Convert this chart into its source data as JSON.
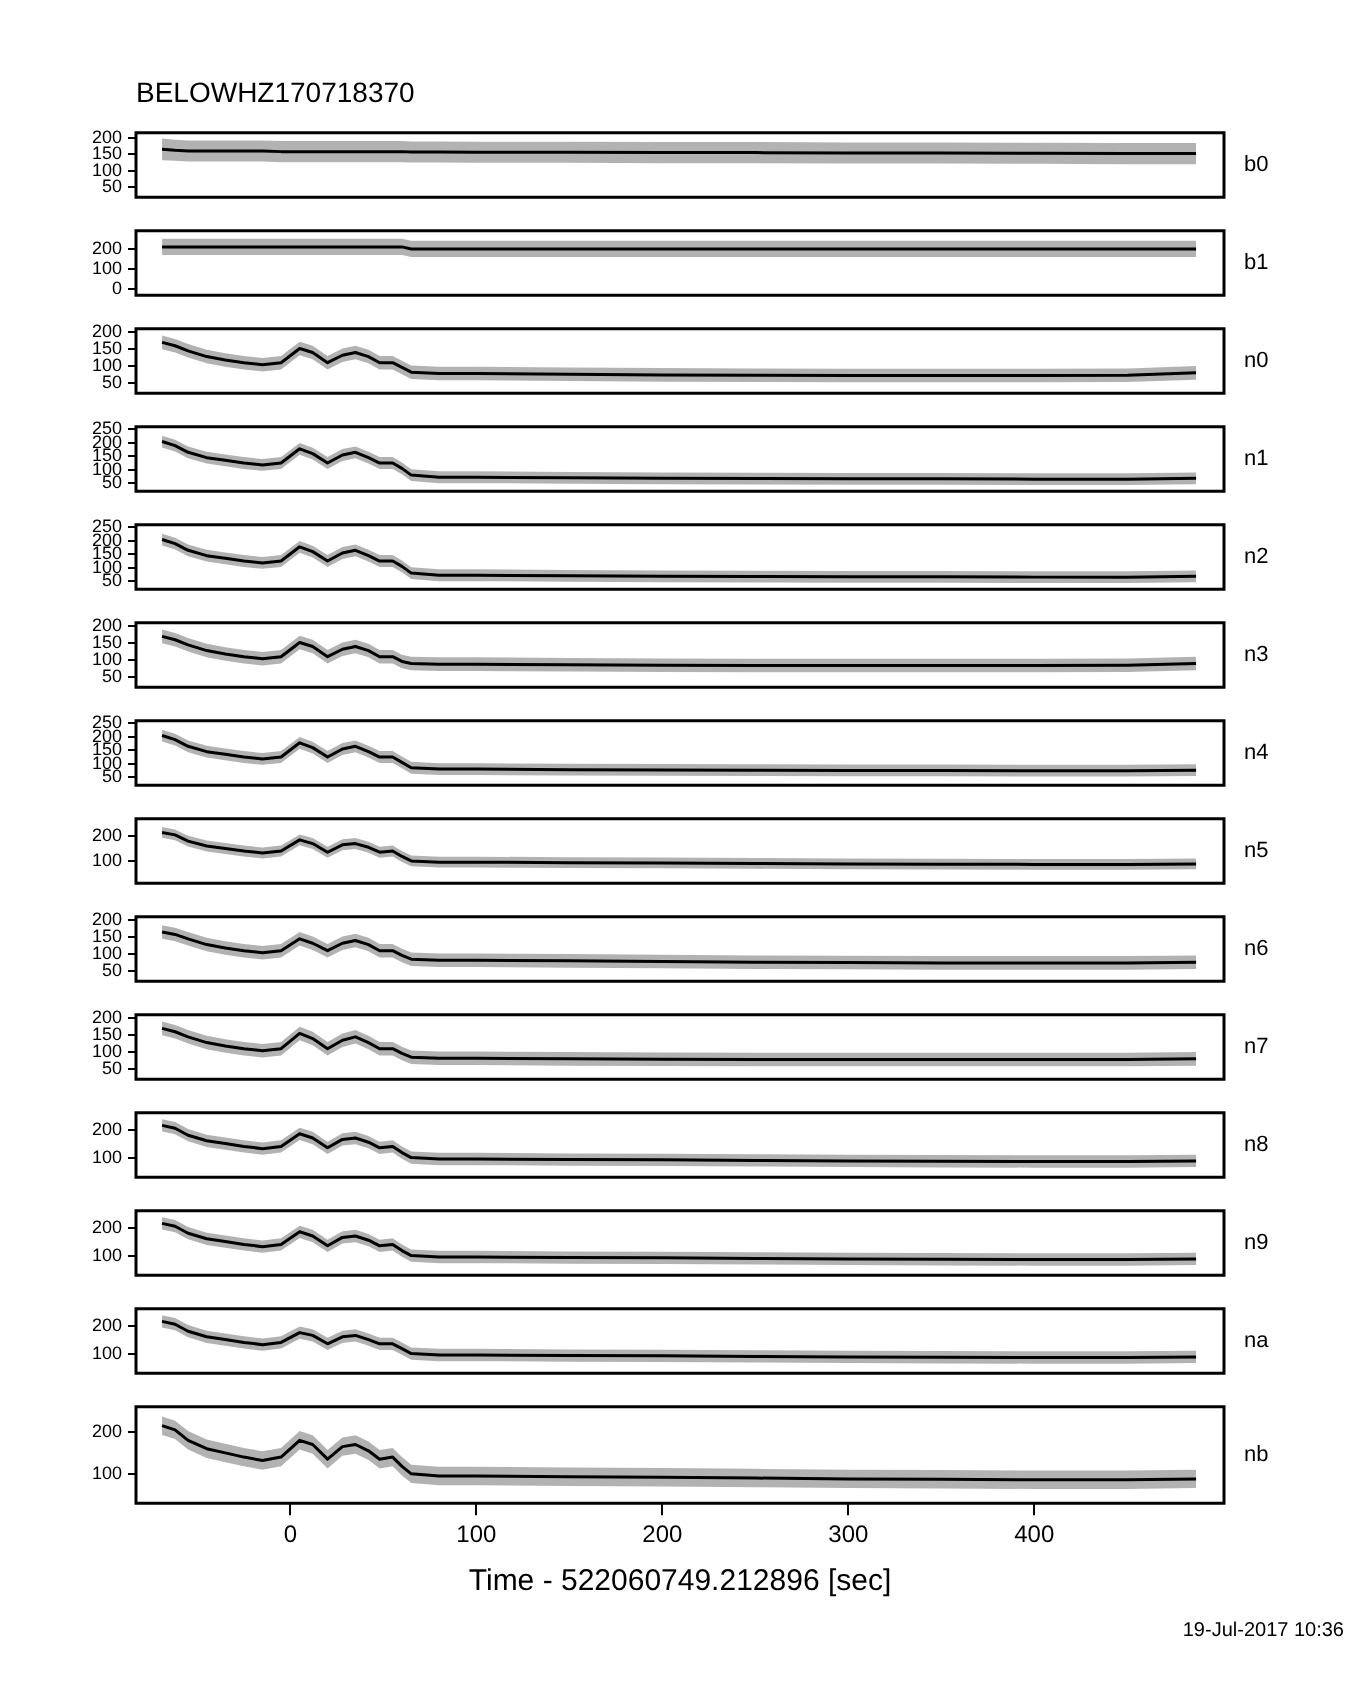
{
  "chart_data": [
    {
      "type": "line",
      "title": "BELOWHZ170718370",
      "x": [
        -69,
        -62,
        -55,
        -45,
        -35,
        -25,
        -15,
        -5,
        5,
        12,
        20,
        28,
        35,
        42,
        48,
        55,
        60,
        65,
        80,
        100,
        150,
        200,
        250,
        300,
        350,
        400,
        450,
        487
      ],
      "xlim": [
        -83,
        502
      ],
      "ylim": [
        20,
        215
      ],
      "yticks": [
        50,
        100,
        150,
        200
      ],
      "tick_labels": "y",
      "series": [
        {
          "name": "b0",
          "color": "#000000",
          "values": [
            165,
            162,
            160,
            160,
            160,
            160,
            160,
            158,
            158,
            158,
            158,
            158,
            158,
            158,
            158,
            158,
            158,
            157,
            157,
            156,
            156,
            155,
            155,
            154,
            154,
            153,
            152,
            152
          ],
          "lower": [
            132,
            130,
            128,
            128,
            128,
            128,
            128,
            126,
            126,
            126,
            126,
            126,
            126,
            126,
            126,
            126,
            126,
            125,
            125,
            124,
            124,
            123,
            123,
            122,
            122,
            121,
            120,
            120
          ],
          "upper": [
            198,
            194,
            192,
            192,
            192,
            192,
            192,
            190,
            190,
            190,
            190,
            190,
            190,
            190,
            190,
            190,
            190,
            189,
            189,
            188,
            188,
            187,
            187,
            186,
            186,
            185,
            184,
            184
          ]
        }
      ]
    },
    {
      "type": "line",
      "x": [
        -69,
        -62,
        -55,
        -45,
        -35,
        -25,
        -15,
        -5,
        5,
        12,
        20,
        28,
        35,
        42,
        48,
        55,
        60,
        65,
        80,
        100,
        150,
        200,
        250,
        300,
        350,
        400,
        450,
        487
      ],
      "xlim": [
        -83,
        502
      ],
      "ylim": [
        -30,
        290
      ],
      "yticks": [
        0,
        100,
        200
      ],
      "tick_labels": "y",
      "series": [
        {
          "name": "b1",
          "color": "#000000",
          "values": [
            210,
            210,
            210,
            210,
            210,
            210,
            210,
            210,
            210,
            210,
            210,
            210,
            210,
            210,
            210,
            210,
            210,
            200,
            200,
            200,
            200,
            200,
            200,
            200,
            200,
            200,
            200,
            200
          ],
          "lower": [
            170,
            170,
            170,
            170,
            170,
            170,
            170,
            170,
            170,
            170,
            170,
            170,
            170,
            170,
            170,
            170,
            170,
            160,
            160,
            160,
            160,
            160,
            160,
            160,
            160,
            160,
            160,
            160
          ],
          "upper": [
            250,
            250,
            250,
            250,
            250,
            250,
            250,
            250,
            250,
            250,
            250,
            250,
            250,
            250,
            250,
            250,
            250,
            240,
            240,
            240,
            240,
            240,
            240,
            240,
            240,
            240,
            240,
            240
          ]
        }
      ]
    },
    {
      "type": "line",
      "x": [
        -69,
        -62,
        -55,
        -45,
        -35,
        -25,
        -15,
        -5,
        5,
        12,
        20,
        28,
        35,
        42,
        48,
        55,
        60,
        65,
        80,
        100,
        150,
        200,
        250,
        300,
        350,
        400,
        450,
        487
      ],
      "xlim": [
        -83,
        502
      ],
      "ylim": [
        20,
        210
      ],
      "yticks": [
        50,
        100,
        150,
        200
      ],
      "tick_labels": "y",
      "series": [
        {
          "name": "n0",
          "color": "#000000",
          "values": [
            170,
            160,
            145,
            128,
            118,
            110,
            104,
            110,
            152,
            140,
            110,
            132,
            140,
            128,
            110,
            110,
            96,
            82,
            78,
            78,
            76,
            74,
            73,
            72,
            72,
            72,
            73,
            80
          ],
          "lower": [
            150,
            140,
            125,
            108,
            98,
            90,
            84,
            90,
            132,
            120,
            90,
            112,
            120,
            108,
            90,
            90,
            76,
            62,
            58,
            58,
            56,
            54,
            53,
            52,
            52,
            52,
            53,
            60
          ],
          "upper": [
            190,
            180,
            165,
            148,
            138,
            130,
            124,
            130,
            172,
            160,
            130,
            152,
            160,
            148,
            130,
            130,
            116,
            102,
            98,
            98,
            96,
            94,
            93,
            92,
            92,
            92,
            93,
            100
          ]
        }
      ]
    },
    {
      "type": "line",
      "x": [
        -69,
        -62,
        -55,
        -45,
        -35,
        -25,
        -15,
        -5,
        5,
        12,
        20,
        28,
        35,
        42,
        48,
        55,
        60,
        65,
        80,
        100,
        150,
        200,
        250,
        300,
        350,
        400,
        450,
        487
      ],
      "xlim": [
        -83,
        502
      ],
      "ylim": [
        20,
        260
      ],
      "yticks": [
        50,
        100,
        150,
        200,
        250
      ],
      "tick_labels": "y",
      "series": [
        {
          "name": "n1",
          "color": "#000000",
          "values": [
            205,
            190,
            165,
            145,
            135,
            125,
            118,
            125,
            178,
            160,
            125,
            155,
            165,
            145,
            125,
            125,
            105,
            80,
            72,
            72,
            70,
            68,
            67,
            66,
            66,
            65,
            65,
            68
          ],
          "lower": [
            183,
            168,
            143,
            123,
            113,
            103,
            96,
            103,
            156,
            138,
            103,
            133,
            143,
            123,
            103,
            103,
            83,
            58,
            50,
            50,
            48,
            46,
            45,
            44,
            44,
            43,
            43,
            46
          ],
          "upper": [
            227,
            212,
            187,
            167,
            157,
            147,
            140,
            147,
            200,
            182,
            147,
            177,
            187,
            167,
            147,
            147,
            127,
            102,
            94,
            94,
            92,
            90,
            89,
            88,
            88,
            87,
            87,
            90
          ]
        }
      ]
    },
    {
      "type": "line",
      "x": [
        -69,
        -62,
        -55,
        -45,
        -35,
        -25,
        -15,
        -5,
        5,
        12,
        20,
        28,
        35,
        42,
        48,
        55,
        60,
        65,
        80,
        100,
        150,
        200,
        250,
        300,
        350,
        400,
        450,
        487
      ],
      "xlim": [
        -83,
        502
      ],
      "ylim": [
        20,
        260
      ],
      "yticks": [
        50,
        100,
        150,
        200,
        250
      ],
      "tick_labels": "y",
      "series": [
        {
          "name": "n2",
          "color": "#000000",
          "values": [
            205,
            190,
            165,
            145,
            135,
            125,
            118,
            125,
            178,
            160,
            125,
            155,
            165,
            145,
            125,
            125,
            105,
            80,
            72,
            72,
            70,
            68,
            67,
            66,
            66,
            65,
            65,
            68
          ],
          "lower": [
            183,
            168,
            143,
            123,
            113,
            103,
            96,
            103,
            156,
            138,
            103,
            133,
            143,
            123,
            103,
            103,
            83,
            58,
            50,
            50,
            48,
            46,
            45,
            44,
            44,
            43,
            43,
            46
          ],
          "upper": [
            227,
            212,
            187,
            167,
            157,
            147,
            140,
            147,
            200,
            182,
            147,
            177,
            187,
            167,
            147,
            147,
            127,
            102,
            94,
            94,
            92,
            90,
            89,
            88,
            88,
            87,
            87,
            90
          ]
        }
      ]
    },
    {
      "type": "line",
      "x": [
        -69,
        -62,
        -55,
        -45,
        -35,
        -25,
        -15,
        -5,
        5,
        12,
        20,
        28,
        35,
        42,
        48,
        55,
        60,
        65,
        80,
        100,
        150,
        200,
        250,
        300,
        350,
        400,
        450,
        487
      ],
      "xlim": [
        -83,
        502
      ],
      "ylim": [
        20,
        210
      ],
      "yticks": [
        50,
        100,
        150,
        200
      ],
      "tick_labels": "y",
      "series": [
        {
          "name": "n3",
          "color": "#000000",
          "values": [
            170,
            160,
            145,
            128,
            118,
            110,
            104,
            110,
            152,
            140,
            110,
            132,
            140,
            128,
            110,
            110,
            96,
            90,
            88,
            88,
            86,
            85,
            84,
            84,
            84,
            84,
            85,
            90
          ],
          "lower": [
            150,
            140,
            125,
            108,
            98,
            90,
            84,
            90,
            132,
            120,
            90,
            112,
            120,
            108,
            90,
            90,
            76,
            70,
            68,
            68,
            66,
            65,
            64,
            64,
            64,
            64,
            65,
            70
          ],
          "upper": [
            190,
            180,
            165,
            148,
            138,
            130,
            124,
            130,
            172,
            160,
            130,
            152,
            160,
            148,
            130,
            130,
            116,
            110,
            108,
            108,
            106,
            105,
            104,
            104,
            104,
            104,
            105,
            110
          ]
        }
      ]
    },
    {
      "type": "line",
      "x": [
        -69,
        -62,
        -55,
        -45,
        -35,
        -25,
        -15,
        -5,
        5,
        12,
        20,
        28,
        35,
        42,
        48,
        55,
        60,
        65,
        80,
        100,
        150,
        200,
        250,
        300,
        350,
        400,
        450,
        487
      ],
      "xlim": [
        -83,
        502
      ],
      "ylim": [
        20,
        260
      ],
      "yticks": [
        50,
        100,
        150,
        200,
        250
      ],
      "tick_labels": "y",
      "series": [
        {
          "name": "n4",
          "color": "#000000",
          "values": [
            205,
            190,
            165,
            145,
            135,
            125,
            118,
            125,
            178,
            160,
            125,
            155,
            165,
            145,
            125,
            125,
            105,
            85,
            80,
            80,
            78,
            77,
            76,
            75,
            75,
            74,
            74,
            76
          ],
          "lower": [
            183,
            168,
            143,
            123,
            113,
            103,
            96,
            103,
            156,
            138,
            103,
            133,
            143,
            123,
            103,
            103,
            83,
            63,
            58,
            58,
            56,
            55,
            54,
            53,
            53,
            52,
            52,
            54
          ],
          "upper": [
            227,
            212,
            187,
            167,
            157,
            147,
            140,
            147,
            200,
            182,
            147,
            177,
            187,
            167,
            147,
            147,
            127,
            107,
            102,
            102,
            100,
            99,
            98,
            97,
            97,
            96,
            96,
            98
          ]
        }
      ]
    },
    {
      "type": "line",
      "x": [
        -69,
        -62,
        -55,
        -45,
        -35,
        -25,
        -15,
        -5,
        5,
        12,
        20,
        28,
        35,
        42,
        48,
        55,
        60,
        65,
        80,
        100,
        150,
        200,
        250,
        300,
        350,
        400,
        450,
        487
      ],
      "xlim": [
        -83,
        502
      ],
      "ylim": [
        10,
        270
      ],
      "yticks": [
        100,
        200
      ],
      "tick_labels": "y",
      "series": [
        {
          "name": "n5",
          "color": "#000000",
          "values": [
            215,
            205,
            180,
            160,
            150,
            140,
            132,
            140,
            185,
            170,
            135,
            165,
            170,
            155,
            135,
            140,
            118,
            100,
            95,
            95,
            93,
            92,
            90,
            88,
            87,
            86,
            86,
            88
          ],
          "lower": [
            193,
            183,
            158,
            138,
            128,
            118,
            110,
            118,
            163,
            148,
            113,
            143,
            148,
            133,
            113,
            118,
            96,
            78,
            73,
            73,
            71,
            70,
            68,
            66,
            65,
            64,
            64,
            66
          ],
          "upper": [
            237,
            227,
            202,
            182,
            172,
            162,
            154,
            162,
            207,
            192,
            157,
            187,
            192,
            177,
            157,
            162,
            140,
            122,
            117,
            117,
            115,
            114,
            112,
            110,
            109,
            108,
            108,
            110
          ]
        }
      ]
    },
    {
      "type": "line",
      "x": [
        -69,
        -62,
        -55,
        -45,
        -35,
        -25,
        -15,
        -5,
        5,
        12,
        20,
        28,
        35,
        42,
        48,
        55,
        60,
        65,
        80,
        100,
        150,
        200,
        250,
        300,
        350,
        400,
        450,
        487
      ],
      "xlim": [
        -83,
        502
      ],
      "ylim": [
        20,
        210
      ],
      "yticks": [
        50,
        100,
        150,
        200
      ],
      "tick_labels": "y",
      "series": [
        {
          "name": "n6",
          "color": "#000000",
          "values": [
            165,
            158,
            145,
            128,
            118,
            110,
            104,
            110,
            145,
            132,
            110,
            132,
            140,
            128,
            110,
            110,
            96,
            85,
            82,
            82,
            80,
            78,
            76,
            75,
            74,
            74,
            74,
            76
          ],
          "lower": [
            145,
            138,
            125,
            108,
            98,
            90,
            84,
            90,
            125,
            112,
            90,
            112,
            120,
            108,
            90,
            90,
            76,
            65,
            62,
            62,
            60,
            58,
            56,
            55,
            54,
            54,
            54,
            56
          ],
          "upper": [
            185,
            178,
            165,
            148,
            138,
            130,
            124,
            130,
            165,
            152,
            130,
            152,
            160,
            148,
            130,
            130,
            116,
            105,
            102,
            102,
            100,
            98,
            96,
            95,
            94,
            94,
            94,
            96
          ]
        }
      ]
    },
    {
      "type": "line",
      "x": [
        -69,
        -62,
        -55,
        -45,
        -35,
        -25,
        -15,
        -5,
        5,
        12,
        20,
        28,
        35,
        42,
        48,
        55,
        60,
        65,
        80,
        100,
        150,
        200,
        250,
        300,
        350,
        400,
        450,
        487
      ],
      "xlim": [
        -83,
        502
      ],
      "ylim": [
        20,
        210
      ],
      "yticks": [
        50,
        100,
        150,
        200
      ],
      "tick_labels": "y",
      "series": [
        {
          "name": "n7",
          "color": "#000000",
          "values": [
            170,
            160,
            145,
            128,
            118,
            110,
            104,
            110,
            155,
            140,
            110,
            135,
            145,
            128,
            110,
            110,
            96,
            85,
            82,
            82,
            80,
            79,
            78,
            78,
            78,
            78,
            78,
            80
          ],
          "lower": [
            150,
            140,
            125,
            108,
            98,
            90,
            84,
            90,
            135,
            120,
            90,
            115,
            125,
            108,
            90,
            90,
            76,
            65,
            62,
            62,
            60,
            59,
            58,
            58,
            58,
            58,
            58,
            60
          ],
          "upper": [
            190,
            180,
            165,
            148,
            138,
            130,
            124,
            130,
            175,
            160,
            130,
            155,
            165,
            148,
            130,
            130,
            116,
            105,
            102,
            102,
            100,
            99,
            98,
            98,
            98,
            98,
            98,
            100
          ]
        }
      ]
    },
    {
      "type": "line",
      "x": [
        -69,
        -62,
        -55,
        -45,
        -35,
        -25,
        -15,
        -5,
        5,
        12,
        20,
        28,
        35,
        42,
        48,
        55,
        60,
        65,
        80,
        100,
        150,
        200,
        250,
        300,
        350,
        400,
        450,
        487
      ],
      "xlim": [
        -83,
        502
      ],
      "ylim": [
        30,
        260
      ],
      "yticks": [
        100,
        200
      ],
      "tick_labels": "y",
      "series": [
        {
          "name": "n8",
          "color": "#000000",
          "values": [
            215,
            205,
            180,
            160,
            150,
            140,
            132,
            140,
            185,
            170,
            135,
            165,
            170,
            155,
            135,
            140,
            118,
            100,
            95,
            95,
            93,
            92,
            90,
            88,
            87,
            86,
            86,
            88
          ],
          "lower": [
            193,
            183,
            158,
            138,
            128,
            118,
            110,
            118,
            163,
            148,
            113,
            143,
            148,
            133,
            113,
            118,
            96,
            78,
            73,
            73,
            71,
            70,
            68,
            66,
            65,
            64,
            64,
            66
          ],
          "upper": [
            237,
            227,
            202,
            182,
            172,
            162,
            154,
            162,
            207,
            192,
            157,
            187,
            192,
            177,
            157,
            162,
            140,
            122,
            117,
            117,
            115,
            114,
            112,
            110,
            109,
            108,
            108,
            110
          ]
        }
      ]
    },
    {
      "type": "line",
      "x": [
        -69,
        -62,
        -55,
        -45,
        -35,
        -25,
        -15,
        -5,
        5,
        12,
        20,
        28,
        35,
        42,
        48,
        55,
        60,
        65,
        80,
        100,
        150,
        200,
        250,
        300,
        350,
        400,
        450,
        487
      ],
      "xlim": [
        -83,
        502
      ],
      "ylim": [
        30,
        260
      ],
      "yticks": [
        100,
        200
      ],
      "tick_labels": "y",
      "series": [
        {
          "name": "n9",
          "color": "#000000",
          "values": [
            215,
            205,
            180,
            160,
            150,
            140,
            132,
            140,
            185,
            170,
            135,
            165,
            170,
            155,
            135,
            140,
            118,
            100,
            95,
            95,
            93,
            92,
            90,
            88,
            87,
            86,
            86,
            88
          ],
          "lower": [
            193,
            183,
            158,
            138,
            128,
            118,
            110,
            118,
            163,
            148,
            113,
            143,
            148,
            133,
            113,
            118,
            96,
            78,
            73,
            73,
            71,
            70,
            68,
            66,
            65,
            64,
            64,
            66
          ],
          "upper": [
            237,
            227,
            202,
            182,
            172,
            162,
            154,
            162,
            207,
            192,
            157,
            187,
            192,
            177,
            157,
            162,
            140,
            122,
            117,
            117,
            115,
            114,
            112,
            110,
            109,
            108,
            108,
            110
          ]
        }
      ]
    },
    {
      "type": "line",
      "x": [
        -69,
        -62,
        -55,
        -45,
        -35,
        -25,
        -15,
        -5,
        5,
        12,
        20,
        28,
        35,
        42,
        48,
        55,
        60,
        65,
        80,
        100,
        150,
        200,
        250,
        300,
        350,
        400,
        450,
        487
      ],
      "xlim": [
        -83,
        502
      ],
      "ylim": [
        30,
        260
      ],
      "yticks": [
        100,
        200
      ],
      "tick_labels": "y",
      "series": [
        {
          "name": "na",
          "color": "#000000",
          "values": [
            215,
            205,
            180,
            160,
            150,
            140,
            132,
            140,
            175,
            165,
            135,
            160,
            165,
            150,
            135,
            135,
            118,
            100,
            95,
            95,
            93,
            92,
            90,
            88,
            87,
            86,
            86,
            88
          ],
          "lower": [
            193,
            183,
            158,
            138,
            128,
            118,
            110,
            118,
            153,
            143,
            113,
            138,
            143,
            128,
            113,
            113,
            96,
            78,
            73,
            73,
            71,
            70,
            68,
            66,
            65,
            64,
            64,
            66
          ],
          "upper": [
            237,
            227,
            202,
            182,
            172,
            162,
            154,
            162,
            197,
            187,
            157,
            182,
            187,
            172,
            157,
            157,
            140,
            122,
            117,
            117,
            115,
            114,
            112,
            110,
            109,
            108,
            108,
            110
          ]
        }
      ]
    },
    {
      "type": "line",
      "xlabel": "Time - 522060749.212896 [sec]",
      "annotations": [
        "19-Jul-2017 10:36"
      ],
      "x": [
        -69,
        -62,
        -55,
        -45,
        -35,
        -25,
        -15,
        -5,
        5,
        12,
        20,
        28,
        35,
        42,
        48,
        55,
        60,
        65,
        80,
        100,
        150,
        200,
        250,
        300,
        350,
        400,
        450,
        487
      ],
      "xlim": [
        -83,
        502
      ],
      "xticks": [
        0,
        100,
        200,
        300,
        400
      ],
      "ylim": [
        30,
        260
      ],
      "yticks": [
        100,
        200
      ],
      "series": [
        {
          "name": "nb",
          "color": "#000000",
          "values": [
            215,
            205,
            180,
            160,
            150,
            140,
            132,
            140,
            180,
            170,
            135,
            165,
            170,
            155,
            135,
            140,
            118,
            100,
            95,
            95,
            93,
            92,
            90,
            88,
            87,
            86,
            86,
            88
          ],
          "lower": [
            193,
            183,
            158,
            138,
            128,
            118,
            110,
            118,
            158,
            148,
            113,
            143,
            148,
            133,
            113,
            118,
            96,
            78,
            73,
            73,
            71,
            70,
            68,
            66,
            65,
            64,
            64,
            66
          ],
          "upper": [
            237,
            227,
            202,
            182,
            172,
            162,
            154,
            162,
            202,
            192,
            157,
            187,
            192,
            177,
            157,
            162,
            140,
            122,
            117,
            117,
            115,
            114,
            112,
            110,
            109,
            108,
            108,
            110
          ]
        }
      ]
    }
  ]
}
